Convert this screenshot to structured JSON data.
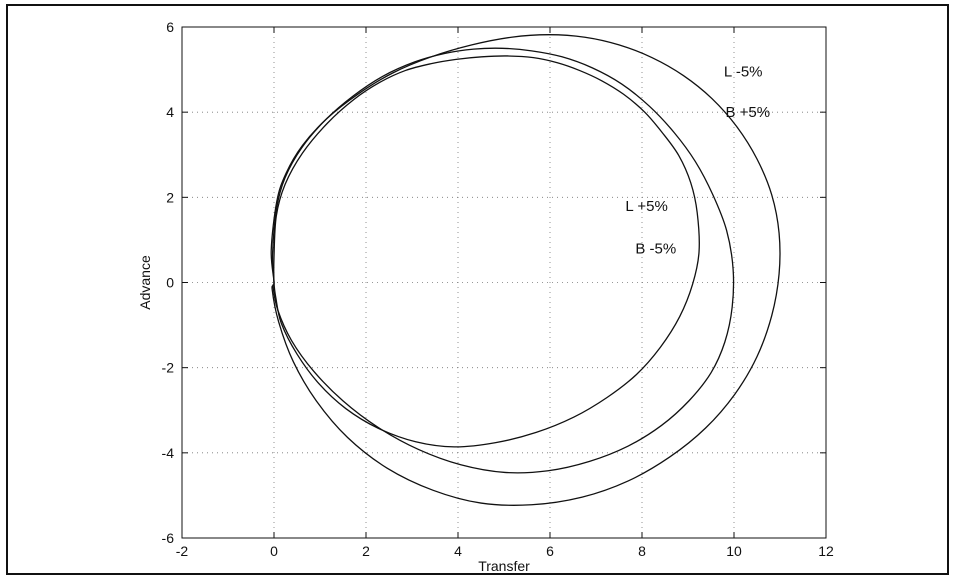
{
  "chart_data": {
    "type": "line",
    "title": "",
    "xlabel": "Transfer",
    "ylabel": "Advance",
    "xlim": [
      -2,
      12
    ],
    "ylim": [
      -6,
      6
    ],
    "xticks": [
      -2,
      0,
      2,
      4,
      6,
      8,
      10,
      12
    ],
    "yticks": [
      -6,
      -4,
      -2,
      0,
      2,
      4,
      6
    ],
    "grid": true,
    "legend": "none",
    "series": [
      {
        "x": [
          0.0,
          0.0,
          0.05,
          0.24,
          0.62,
          1.16,
          1.74,
          2.3,
          2.86,
          3.42,
          3.96,
          4.52,
          5.08,
          5.64,
          6.16,
          6.64,
          7.12,
          7.6,
          8.06,
          8.44,
          8.8,
          9.06,
          9.2,
          9.24,
          9.1,
          8.82,
          8.4,
          7.88,
          7.24,
          6.52,
          5.7,
          4.82,
          3.92,
          3.08,
          2.26,
          1.56,
          0.98,
          0.5,
          0.16,
          0.04
        ],
        "y": [
          0.0,
          0.6,
          1.56,
          2.3,
          3.04,
          3.74,
          4.3,
          4.7,
          4.98,
          5.14,
          5.24,
          5.3,
          5.32,
          5.28,
          5.16,
          4.98,
          4.74,
          4.42,
          4.0,
          3.52,
          2.98,
          2.34,
          1.64,
          0.72,
          -0.04,
          -0.8,
          -1.52,
          -2.16,
          -2.7,
          -3.16,
          -3.52,
          -3.76,
          -3.86,
          -3.74,
          -3.42,
          -2.96,
          -2.38,
          -1.68,
          -0.96,
          -0.36
        ]
      },
      {
        "x": [
          0.0,
          -0.03,
          0.06,
          0.24,
          0.6,
          1.12,
          1.72,
          2.36,
          3.06,
          3.72,
          4.34,
          4.96,
          5.6,
          6.26,
          6.92,
          7.56,
          8.16,
          8.7,
          9.16,
          9.54,
          9.84,
          9.98,
          9.96,
          9.8,
          9.5,
          9.02,
          8.42,
          7.7,
          6.86,
          5.96,
          5.02,
          4.06,
          3.14,
          2.26,
          1.5,
          0.86,
          0.38,
          0.08,
          -0.02
        ],
        "y": [
          0.0,
          0.7,
          1.76,
          2.46,
          3.16,
          3.82,
          4.38,
          4.84,
          5.18,
          5.38,
          5.48,
          5.5,
          5.44,
          5.3,
          5.04,
          4.66,
          4.14,
          3.52,
          2.84,
          2.06,
          1.22,
          0.32,
          -0.58,
          -1.4,
          -2.12,
          -2.78,
          -3.36,
          -3.84,
          -4.2,
          -4.42,
          -4.46,
          -4.28,
          -3.92,
          -3.4,
          -2.78,
          -2.08,
          -1.36,
          -0.64,
          -0.1
        ]
      },
      {
        "x": [
          0.0,
          -0.06,
          0.06,
          0.26,
          0.62,
          1.16,
          1.82,
          2.58,
          3.42,
          4.3,
          5.16,
          5.98,
          6.76,
          7.5,
          8.22,
          8.9,
          9.52,
          10.06,
          10.5,
          10.82,
          10.98,
          10.98,
          10.82,
          10.5,
          10.02,
          9.38,
          8.6,
          7.7,
          6.7,
          5.6,
          4.5,
          3.46,
          2.46,
          1.6,
          0.92,
          0.42,
          0.1,
          -0.04
        ],
        "y": [
          0.0,
          0.76,
          1.9,
          2.56,
          3.22,
          3.86,
          4.42,
          4.92,
          5.3,
          5.58,
          5.76,
          5.82,
          5.76,
          5.58,
          5.28,
          4.86,
          4.32,
          3.66,
          2.9,
          2.06,
          1.16,
          0.2,
          -0.78,
          -1.74,
          -2.62,
          -3.42,
          -4.1,
          -4.66,
          -5.04,
          -5.22,
          -5.18,
          -4.88,
          -4.36,
          -3.64,
          -2.78,
          -1.86,
          -0.92,
          -0.16
        ]
      }
    ],
    "annotations": [
      {
        "text": "L -5%",
        "x": 10.2,
        "y": 4.95
      },
      {
        "text": "B +5%",
        "x": 10.3,
        "y": 4.0
      },
      {
        "text": "L +5%",
        "x": 8.1,
        "y": 1.8
      },
      {
        "text": "B -5%",
        "x": 8.3,
        "y": 0.8
      }
    ]
  }
}
